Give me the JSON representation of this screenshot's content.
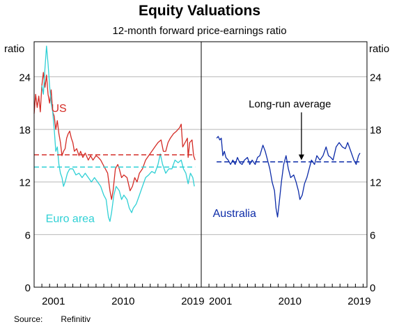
{
  "title": "Equity Valuations",
  "subtitle": "12-month forward price-earnings ratio",
  "source": {
    "label": "Source:",
    "value": "Refinitiv"
  },
  "colors": {
    "us": "#d42b25",
    "euro": "#2fd0d5",
    "australia": "#0c2ba8",
    "grid": "#b7b7b7"
  },
  "chart_data": {
    "type": "line",
    "y_unit_label": "ratio",
    "ylim": [
      0,
      28
    ],
    "yticks": [
      0,
      6,
      12,
      18,
      24
    ],
    "grid": true,
    "panels": [
      {
        "xlim": [
          1999.0,
          2020.5
        ],
        "xticks": [
          "2001",
          "2010",
          "2019"
        ],
        "series": [
          {
            "name": "US",
            "color_key": "us",
            "style": "solid",
            "points": [
              [
                1999.0,
                19.8
              ],
              [
                1999.2,
                22.0
              ],
              [
                1999.4,
                20.5
              ],
              [
                1999.6,
                21.8
              ],
              [
                1999.8,
                20.0
              ],
              [
                2000.0,
                23.0
              ],
              [
                2000.2,
                24.5
              ],
              [
                2000.4,
                22.8
              ],
              [
                2000.6,
                24.2
              ],
              [
                2000.8,
                22.0
              ],
              [
                2001.0,
                21.0
              ],
              [
                2001.2,
                22.5
              ],
              [
                2001.4,
                20.0
              ],
              [
                2001.6,
                19.5
              ],
              [
                2001.8,
                18.0
              ],
              [
                2002.0,
                19.0
              ],
              [
                2002.2,
                17.5
              ],
              [
                2002.4,
                16.5
              ],
              [
                2002.6,
                15.0
              ],
              [
                2002.8,
                15.5
              ],
              [
                2003.0,
                15.8
              ],
              [
                2003.2,
                17.0
              ],
              [
                2003.4,
                17.5
              ],
              [
                2003.6,
                17.8
              ],
              [
                2003.8,
                17.0
              ],
              [
                2004.0,
                16.5
              ],
              [
                2004.2,
                15.5
              ],
              [
                2004.5,
                15.8
              ],
              [
                2004.8,
                15.0
              ],
              [
                2005.0,
                15.5
              ],
              [
                2005.3,
                14.8
              ],
              [
                2005.6,
                15.3
              ],
              [
                2006.0,
                14.5
              ],
              [
                2006.3,
                15.0
              ],
              [
                2006.6,
                14.5
              ],
              [
                2007.0,
                15.0
              ],
              [
                2007.3,
                14.8
              ],
              [
                2007.6,
                14.5
              ],
              [
                2007.9,
                14.0
              ],
              [
                2008.2,
                13.5
              ],
              [
                2008.5,
                13.0
              ],
              [
                2008.8,
                11.0
              ],
              [
                2009.0,
                10.0
              ],
              [
                2009.2,
                11.0
              ],
              [
                2009.5,
                13.5
              ],
              [
                2009.8,
                14.0
              ],
              [
                2010.0,
                13.5
              ],
              [
                2010.3,
                12.5
              ],
              [
                2010.6,
                12.8
              ],
              [
                2011.0,
                12.5
              ],
              [
                2011.4,
                11.0
              ],
              [
                2011.7,
                11.5
              ],
              [
                2012.0,
                12.5
              ],
              [
                2012.3,
                12.0
              ],
              [
                2012.6,
                13.0
              ],
              [
                2013.0,
                13.5
              ],
              [
                2013.4,
                14.5
              ],
              [
                2013.8,
                15.0
              ],
              [
                2014.2,
                15.5
              ],
              [
                2014.6,
                16.0
              ],
              [
                2015.0,
                16.5
              ],
              [
                2015.4,
                16.8
              ],
              [
                2015.7,
                15.5
              ],
              [
                2016.0,
                15.5
              ],
              [
                2016.3,
                16.5
              ],
              [
                2016.6,
                17.0
              ],
              [
                2017.0,
                17.5
              ],
              [
                2017.4,
                17.8
              ],
              [
                2017.8,
                18.2
              ],
              [
                2018.0,
                18.6
              ],
              [
                2018.2,
                16.0
              ],
              [
                2018.5,
                16.5
              ],
              [
                2018.8,
                17.0
              ],
              [
                2018.9,
                14.8
              ],
              [
                2019.1,
                16.5
              ],
              [
                2019.4,
                16.8
              ],
              [
                2019.6,
                15.0
              ],
              [
                2019.8,
                14.5
              ]
            ]
          },
          {
            "name": "Euro area",
            "color_key": "euro",
            "style": "solid",
            "points": [
              [
                2000.0,
                23.0
              ],
              [
                2000.2,
                22.0
              ],
              [
                2000.4,
                25.0
              ],
              [
                2000.6,
                27.5
              ],
              [
                2000.8,
                25.5
              ],
              [
                2001.0,
                23.0
              ],
              [
                2001.2,
                21.0
              ],
              [
                2001.4,
                20.0
              ],
              [
                2001.6,
                18.0
              ],
              [
                2001.8,
                15.5
              ],
              [
                2002.0,
                16.0
              ],
              [
                2002.2,
                14.0
              ],
              [
                2002.4,
                13.0
              ],
              [
                2002.6,
                12.5
              ],
              [
                2002.8,
                11.5
              ],
              [
                2003.0,
                12.0
              ],
              [
                2003.3,
                13.0
              ],
              [
                2003.6,
                13.5
              ],
              [
                2004.0,
                13.5
              ],
              [
                2004.4,
                12.8
              ],
              [
                2004.8,
                13.0
              ],
              [
                2005.2,
                12.5
              ],
              [
                2005.6,
                13.0
              ],
              [
                2006.0,
                12.5
              ],
              [
                2006.4,
                12.0
              ],
              [
                2006.8,
                12.5
              ],
              [
                2007.2,
                12.0
              ],
              [
                2007.6,
                11.5
              ],
              [
                2008.0,
                10.5
              ],
              [
                2008.3,
                10.0
              ],
              [
                2008.6,
                8.0
              ],
              [
                2008.8,
                7.5
              ],
              [
                2009.0,
                8.5
              ],
              [
                2009.3,
                10.5
              ],
              [
                2009.6,
                11.5
              ],
              [
                2010.0,
                11.0
              ],
              [
                2010.3,
                10.0
              ],
              [
                2010.6,
                10.5
              ],
              [
                2011.0,
                10.0
              ],
              [
                2011.3,
                9.0
              ],
              [
                2011.6,
                8.5
              ],
              [
                2011.8,
                9.0
              ],
              [
                2012.2,
                9.5
              ],
              [
                2012.6,
                10.5
              ],
              [
                2013.0,
                11.5
              ],
              [
                2013.4,
                12.5
              ],
              [
                2013.8,
                12.8
              ],
              [
                2014.2,
                13.2
              ],
              [
                2014.6,
                13.0
              ],
              [
                2015.0,
                14.0
              ],
              [
                2015.3,
                15.2
              ],
              [
                2015.6,
                14.0
              ],
              [
                2016.0,
                13.0
              ],
              [
                2016.4,
                13.5
              ],
              [
                2016.8,
                13.5
              ],
              [
                2017.2,
                14.5
              ],
              [
                2017.6,
                14.2
              ],
              [
                2018.0,
                14.5
              ],
              [
                2018.3,
                13.5
              ],
              [
                2018.6,
                13.0
              ],
              [
                2018.9,
                11.8
              ],
              [
                2019.2,
                13.0
              ],
              [
                2019.5,
                12.5
              ],
              [
                2019.7,
                11.5
              ]
            ]
          },
          {
            "name": "US long-run average",
            "color_key": "us",
            "style": "dashed",
            "points": [
              [
                1999.0,
                15.1
              ],
              [
                2019.8,
                15.1
              ]
            ]
          },
          {
            "name": "Euro area long-run average",
            "color_key": "euro",
            "style": "dashed",
            "points": [
              [
                1999.0,
                13.7
              ],
              [
                2019.8,
                13.7
              ]
            ]
          }
        ],
        "labels": [
          {
            "text": "US",
            "color_key": "us",
            "x": 2001.2,
            "y": 20.0
          },
          {
            "text": "Euro area",
            "color_key": "euro",
            "x": 2000.5,
            "y": 7.4
          }
        ]
      },
      {
        "xlim": [
          1999.0,
          2020.5
        ],
        "xticks": [
          "2001",
          "2010",
          "2019"
        ],
        "series": [
          {
            "name": "Australia",
            "color_key": "australia",
            "style": "solid",
            "points": [
              [
                2001.0,
                17.0
              ],
              [
                2001.2,
                17.2
              ],
              [
                2001.4,
                16.8
              ],
              [
                2001.6,
                17.0
              ],
              [
                2001.8,
                15.0
              ],
              [
                2002.0,
                15.5
              ],
              [
                2002.2,
                14.8
              ],
              [
                2002.5,
                14.5
              ],
              [
                2002.8,
                14.0
              ],
              [
                2003.1,
                14.5
              ],
              [
                2003.4,
                14.0
              ],
              [
                2003.7,
                14.8
              ],
              [
                2004.0,
                14.2
              ],
              [
                2004.3,
                14.0
              ],
              [
                2004.6,
                14.5
              ],
              [
                2005.0,
                14.8
              ],
              [
                2005.3,
                14.0
              ],
              [
                2005.6,
                14.5
              ],
              [
                2006.0,
                14.0
              ],
              [
                2006.3,
                14.8
              ],
              [
                2006.6,
                15.0
              ],
              [
                2007.0,
                16.2
              ],
              [
                2007.3,
                15.5
              ],
              [
                2007.6,
                14.5
              ],
              [
                2007.9,
                13.5
              ],
              [
                2008.2,
                12.0
              ],
              [
                2008.5,
                11.0
              ],
              [
                2008.7,
                9.0
              ],
              [
                2008.9,
                8.0
              ],
              [
                2009.1,
                9.5
              ],
              [
                2009.4,
                12.0
              ],
              [
                2009.7,
                14.0
              ],
              [
                2010.0,
                15.0
              ],
              [
                2010.3,
                13.5
              ],
              [
                2010.6,
                12.5
              ],
              [
                2011.0,
                12.8
              ],
              [
                2011.3,
                12.0
              ],
              [
                2011.6,
                11.0
              ],
              [
                2011.8,
                10.0
              ],
              [
                2012.1,
                10.5
              ],
              [
                2012.4,
                11.8
              ],
              [
                2012.7,
                12.5
              ],
              [
                2013.0,
                13.5
              ],
              [
                2013.3,
                14.5
              ],
              [
                2013.7,
                14.0
              ],
              [
                2014.0,
                15.0
              ],
              [
                2014.4,
                14.5
              ],
              [
                2014.8,
                15.0
              ],
              [
                2015.2,
                16.0
              ],
              [
                2015.5,
                15.0
              ],
              [
                2015.8,
                14.8
              ],
              [
                2016.1,
                14.5
              ],
              [
                2016.5,
                16.0
              ],
              [
                2016.9,
                16.5
              ],
              [
                2017.3,
                16.0
              ],
              [
                2017.7,
                15.8
              ],
              [
                2018.0,
                16.5
              ],
              [
                2018.4,
                15.5
              ],
              [
                2018.8,
                14.5
              ],
              [
                2019.1,
                14.0
              ],
              [
                2019.4,
                15.0
              ],
              [
                2019.6,
                15.3
              ]
            ]
          },
          {
            "name": "Australia long-run average",
            "color_key": "australia",
            "style": "dashed",
            "points": [
              [
                2001.0,
                14.3
              ],
              [
                2019.6,
                14.3
              ]
            ]
          }
        ],
        "labels": [
          {
            "text": "Australia",
            "color_key": "australia",
            "x": 2000.5,
            "y": 8.0
          }
        ],
        "annotation": {
          "text": "Long-run average",
          "x": 2010.5,
          "y": 20.5,
          "arrow_to": [
            2012.0,
            14.5
          ]
        }
      }
    ]
  }
}
